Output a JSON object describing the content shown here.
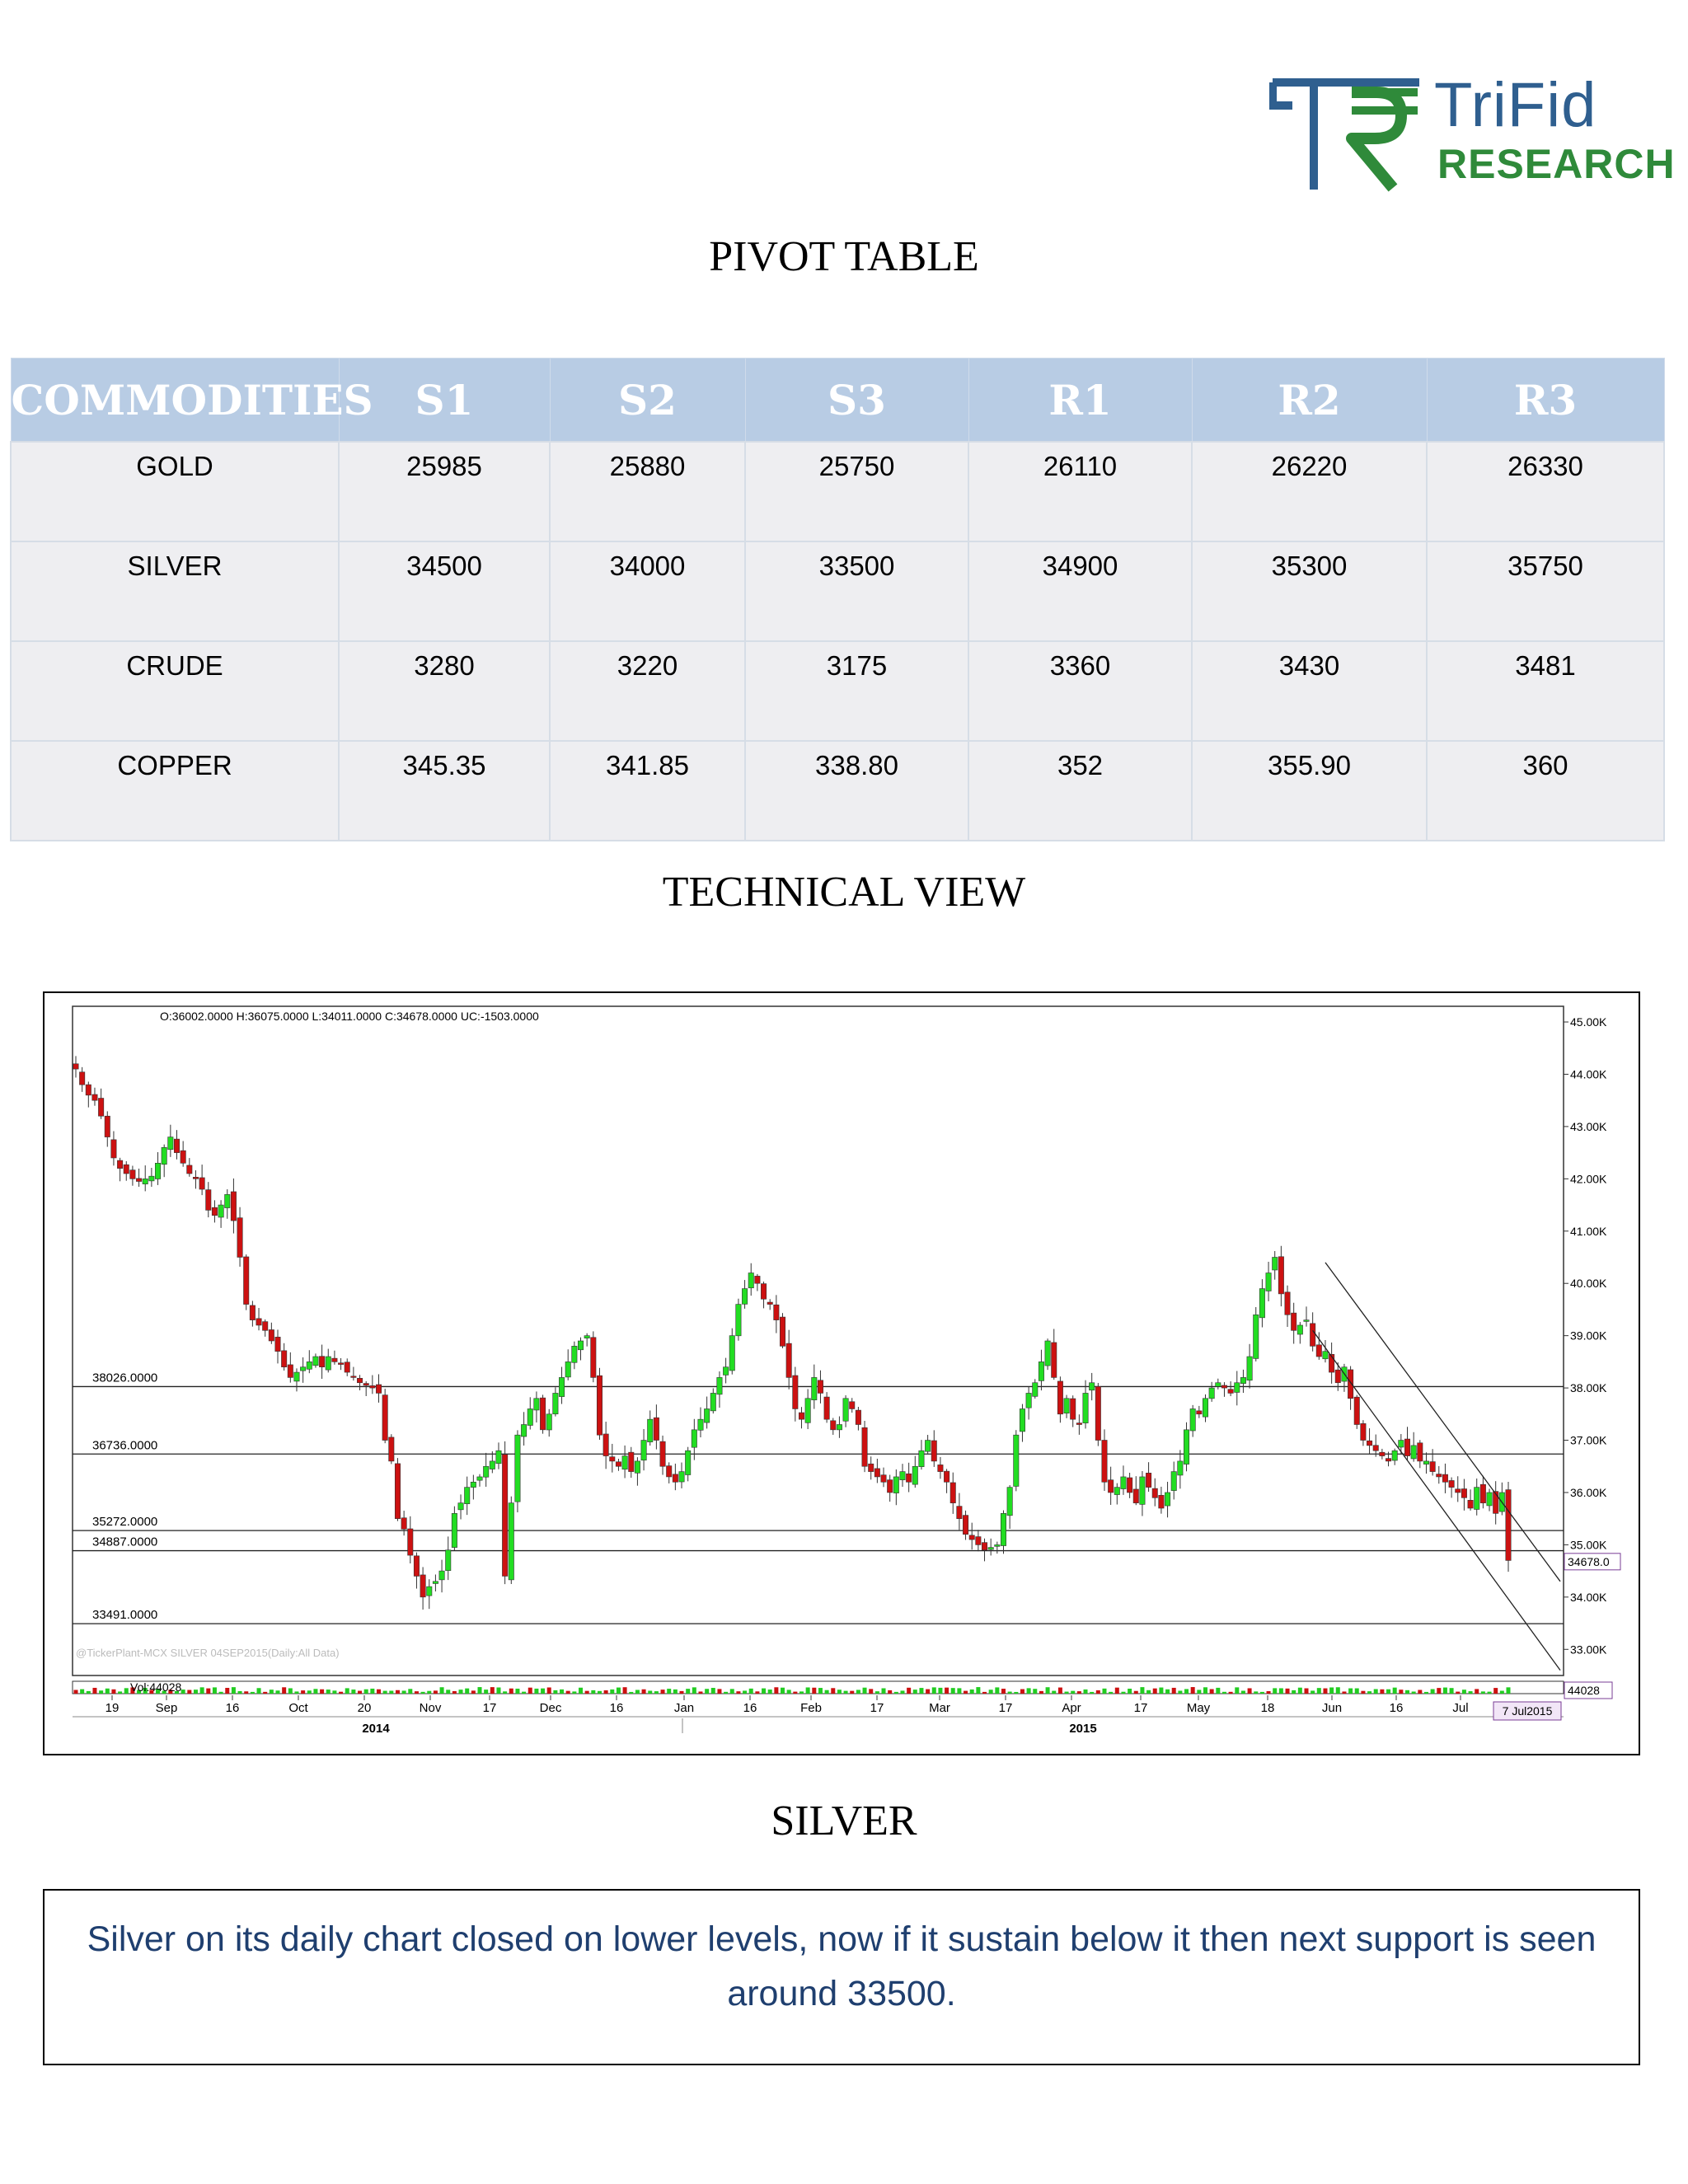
{
  "logo": {
    "word1": "TriFid",
    "word2": "RESEARCH"
  },
  "titles": {
    "pivot": "PIVOT TABLE",
    "technical": "TECHNICAL VIEW",
    "commodity": "SILVER"
  },
  "pivot_table": {
    "headers": [
      "COMMODITIES",
      "S1",
      "S2",
      "S3",
      "R1",
      "R2",
      "R3"
    ],
    "rows": [
      [
        "GOLD",
        "25985",
        "25880",
        "25750",
        "26110",
        "26220",
        "26330"
      ],
      [
        "SILVER",
        "34500",
        "34000",
        "33500",
        "34900",
        "35300",
        "35750"
      ],
      [
        "CRUDE",
        "3280",
        "3220",
        "3175",
        "3360",
        "3430",
        "3481"
      ],
      [
        "COPPER",
        "345.35",
        "341.85",
        "338.80",
        "352",
        "355.90",
        "360"
      ]
    ]
  },
  "chart_data": {
    "type": "candlestick",
    "header": "O:36002.0000  H:36075.0000  L:34011.0000  C:34678.0000  UC:-1503.0000",
    "watermark": "@TickerPlant-MCX SILVER 04SEP2015(Daily:All Data)",
    "ylim": [
      32500,
      45300
    ],
    "y_ticks": [
      "45.00K",
      "44.00K",
      "43.00K",
      "42.00K",
      "41.00K",
      "40.00K",
      "39.00K",
      "38.00K",
      "37.00K",
      "36.00K",
      "35.00K",
      "34.00K",
      "33.00K"
    ],
    "y_tick_values": [
      45000,
      44000,
      43000,
      42000,
      41000,
      40000,
      39000,
      38000,
      37000,
      36000,
      35000,
      34000,
      33000
    ],
    "horizontal_levels": [
      {
        "label": "38026.0000",
        "value": 38026
      },
      {
        "label": "36736.0000",
        "value": 36736
      },
      {
        "label": "35272.0000",
        "value": 35272
      },
      {
        "label": "34887.0000",
        "value": 34887
      },
      {
        "label": "33491.0000",
        "value": 33491
      }
    ],
    "last_price_label": "34678.0",
    "last_price": 34678,
    "volume_label": "Vol:44028",
    "volume_badge": "44028",
    "date_badge": "7 Jul2015",
    "x_ticks": [
      "19",
      "Sep",
      "16",
      "Oct",
      "20",
      "Nov",
      "17",
      "Dec",
      "16",
      "Jan",
      "16",
      "Feb",
      "17",
      "Mar",
      "17",
      "Apr",
      "17",
      "May",
      "18",
      "Jun",
      "16",
      "Jul"
    ],
    "years": [
      "2014",
      "2015"
    ],
    "closes": [
      44100,
      43800,
      43600,
      43500,
      43200,
      42800,
      42400,
      42200,
      42100,
      42000,
      41950,
      42000,
      42050,
      42300,
      42600,
      42800,
      42500,
      42300,
      42100,
      42000,
      41800,
      41400,
      41300,
      41500,
      41700,
      41200,
      40500,
      39600,
      39300,
      39200,
      39100,
      38900,
      38700,
      38400,
      38200,
      38300,
      38400,
      38500,
      38600,
      38400,
      38600,
      38500,
      38450,
      38300,
      38200,
      38100,
      38050,
      38000,
      37900,
      37000,
      36600,
      35500,
      35300,
      34800,
      34400,
      34000,
      34200,
      34300,
      34500,
      34900,
      35600,
      35800,
      36100,
      36200,
      36300,
      36500,
      36600,
      36800,
      34400,
      35800,
      37100,
      37300,
      37600,
      37800,
      37200,
      37500,
      37900,
      38200,
      38500,
      38800,
      38900,
      39000,
      38200,
      37100,
      36700,
      36600,
      36500,
      36700,
      36400,
      36600,
      37000,
      37400,
      37000,
      36500,
      36300,
      36200,
      36400,
      36800,
      37200,
      37400,
      37600,
      37900,
      38200,
      38400,
      39000,
      39600,
      39900,
      40200,
      40000,
      39700,
      39600,
      39300,
      38800,
      38200,
      37600,
      37400,
      37800,
      38200,
      37900,
      37400,
      37200,
      37300,
      37800,
      37600,
      37300,
      36500,
      36400,
      36300,
      36200,
      36000,
      36300,
      36400,
      36200,
      36500,
      36800,
      37000,
      36600,
      36400,
      36200,
      35800,
      35500,
      35200,
      35100,
      35000,
      34900,
      34950,
      35000,
      35600,
      36100,
      37100,
      37600,
      37900,
      38100,
      38500,
      38900,
      38200,
      37500,
      37800,
      37400,
      37300,
      37900,
      38100,
      37000,
      36200,
      36000,
      36100,
      36300,
      36000,
      35800,
      36300,
      36100,
      35900,
      35700,
      36000,
      36400,
      36600,
      37200,
      37600,
      37500,
      37800,
      38000,
      38100,
      38000,
      37900,
      38100,
      38200,
      38600,
      39400,
      39900,
      40200,
      40500,
      39800,
      39400,
      39100,
      39200,
      39300,
      38800,
      38600,
      38700,
      38300,
      38100,
      38400,
      37800,
      37300,
      37000,
      36900,
      36800,
      36700,
      36600,
      36800,
      37000,
      36700,
      36900,
      36600,
      36600,
      36400,
      36300,
      36200,
      36100,
      36000,
      35900,
      35700,
      36100,
      35800,
      36000,
      35600,
      36000,
      34700
    ]
  }
}
